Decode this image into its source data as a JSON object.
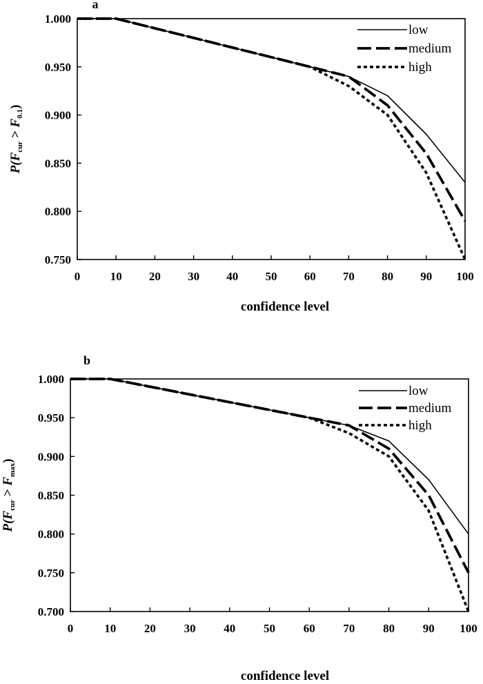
{
  "chart_data": [
    {
      "panel": "a",
      "type": "line",
      "xlabel": "confidence level",
      "ylabel": {
        "p": "P(",
        "f1": "F",
        "s1": "cur",
        "gt": " > ",
        "f2": "F",
        "s2": "0.1",
        "close": ")"
      },
      "x": [
        0,
        10,
        20,
        30,
        40,
        50,
        60,
        70,
        80,
        90,
        100
      ],
      "xlim": [
        0,
        100
      ],
      "ylim": [
        0.75,
        1.0
      ],
      "xticks": [
        "0",
        "10",
        "20",
        "30",
        "40",
        "50",
        "60",
        "70",
        "80",
        "90",
        "100"
      ],
      "yticks": [
        "0.750",
        "0.800",
        "0.850",
        "0.900",
        "0.950",
        "1.000"
      ],
      "yticks_values": [
        0.75,
        0.8,
        0.85,
        0.9,
        0.95,
        1.0
      ],
      "legend_position": "top-right",
      "grid": false,
      "series": [
        {
          "name": "low",
          "style": "solid",
          "values": [
            1.0,
            1.0,
            0.99,
            0.98,
            0.97,
            0.96,
            0.95,
            0.94,
            0.92,
            0.88,
            0.83
          ]
        },
        {
          "name": "medium",
          "style": "long-dash",
          "values": [
            1.0,
            1.0,
            0.99,
            0.98,
            0.97,
            0.96,
            0.95,
            0.94,
            0.91,
            0.86,
            0.79
          ]
        },
        {
          "name": "high",
          "style": "dotted",
          "values": [
            1.0,
            1.0,
            0.99,
            0.98,
            0.97,
            0.96,
            0.95,
            0.93,
            0.9,
            0.84,
            0.75
          ]
        }
      ]
    },
    {
      "panel": "b",
      "type": "line",
      "xlabel": "confidence level",
      "ylabel": {
        "p": "P(",
        "f1": "F",
        "s1": "cur",
        "gt": " > ",
        "f2": "F",
        "s2": "max",
        "close": ")"
      },
      "x": [
        0,
        10,
        20,
        30,
        40,
        50,
        60,
        70,
        80,
        90,
        100
      ],
      "xlim": [
        0,
        100
      ],
      "ylim": [
        0.7,
        1.0
      ],
      "xticks": [
        "0",
        "10",
        "20",
        "30",
        "40",
        "50",
        "60",
        "70",
        "80",
        "90",
        "100"
      ],
      "yticks": [
        "0.700",
        "0.750",
        "0.800",
        "0.850",
        "0.900",
        "0.950",
        "1.000"
      ],
      "yticks_values": [
        0.7,
        0.75,
        0.8,
        0.85,
        0.9,
        0.95,
        1.0
      ],
      "legend_position": "top-right",
      "grid": false,
      "series": [
        {
          "name": "low",
          "style": "solid",
          "values": [
            1.0,
            1.0,
            0.99,
            0.98,
            0.97,
            0.96,
            0.95,
            0.94,
            0.92,
            0.87,
            0.8
          ]
        },
        {
          "name": "medium",
          "style": "long-dash",
          "values": [
            1.0,
            1.0,
            0.99,
            0.98,
            0.97,
            0.96,
            0.95,
            0.94,
            0.91,
            0.85,
            0.75
          ]
        },
        {
          "name": "high",
          "style": "dotted",
          "values": [
            1.0,
            1.0,
            0.99,
            0.98,
            0.97,
            0.96,
            0.95,
            0.93,
            0.9,
            0.83,
            0.7
          ]
        }
      ]
    }
  ]
}
